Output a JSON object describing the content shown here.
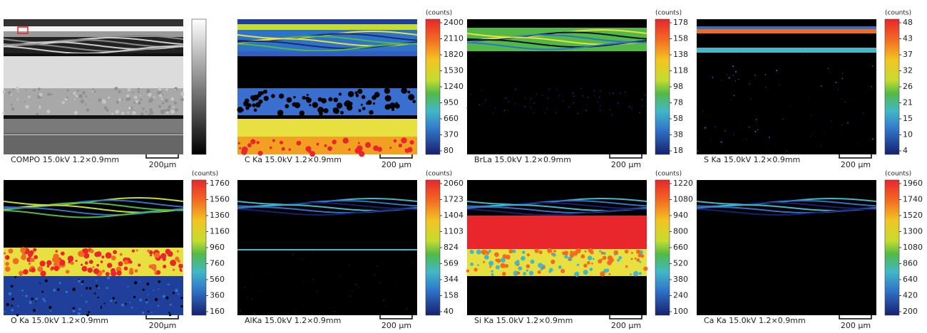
{
  "panels": [
    {
      "caption": "COMPO 15.0kV 1.2×0.9mm",
      "scale_label": "200μm"
    },
    {
      "caption": "C Ka 15.0kV 1.2×0.9mm",
      "scale_label": "200 μm",
      "unit": "(counts)",
      "ticks": [
        2400,
        2110,
        1820,
        1530,
        1240,
        950,
        660,
        370,
        80
      ]
    },
    {
      "caption": "BrLa 15.0kV 1.2×0.9mm",
      "scale_label": "200 μm",
      "unit": "(counts)",
      "ticks": [
        178,
        158,
        138,
        118,
        98,
        78,
        58,
        38,
        18
      ]
    },
    {
      "caption": "S Ka 15.0kV 1.2×0.9mm",
      "scale_label": "200 μm",
      "unit": "(counts)",
      "ticks": [
        48,
        43,
        37,
        32,
        26,
        21,
        15,
        10,
        4
      ]
    },
    {
      "caption": "O Ka 15.0kV 1.2×0.9mm",
      "scale_label": "200μm",
      "unit": "(counts)",
      "ticks": [
        1760,
        1560,
        1360,
        1160,
        960,
        760,
        560,
        360,
        160
      ]
    },
    {
      "caption": "AlKa 15.0kV 1.2×0.9mm",
      "scale_label": "200 μm",
      "unit": "(counts)",
      "ticks": [
        2060,
        1723,
        1404,
        1103,
        824,
        569,
        344,
        158,
        40
      ]
    },
    {
      "caption": "Si Ka 15.0kV 1.2×0.9mm",
      "scale_label": "200 μm",
      "unit": "(counts)",
      "ticks": [
        1220,
        1080,
        940,
        800,
        660,
        520,
        380,
        240,
        100
      ]
    },
    {
      "caption": "Ca Ka 15.0kV 1.2×0.9mm",
      "scale_label": "200 μm",
      "unit": "(counts)",
      "ticks": [
        1960,
        1740,
        1520,
        1300,
        1080,
        860,
        640,
        420,
        200
      ]
    }
  ]
}
